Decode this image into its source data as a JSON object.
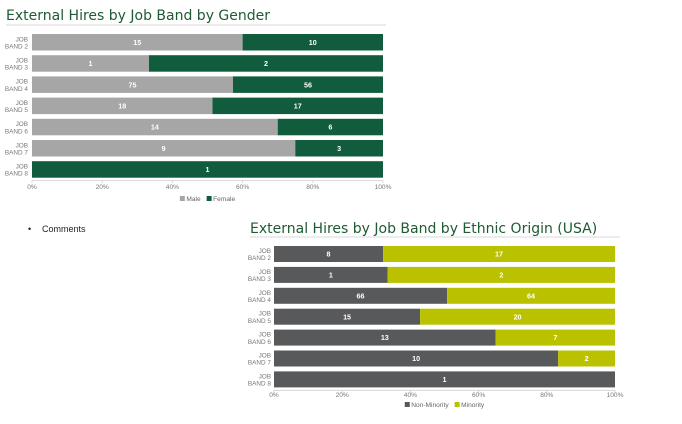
{
  "comments": {
    "bullet": "•",
    "label": "Comments"
  },
  "chart_data": [
    {
      "type": "bar",
      "orientation": "horizontal",
      "stacked": "percent",
      "title": "External Hires by Job Band by Gender",
      "categories": [
        [
          "JOB",
          "BAND 2"
        ],
        [
          "JOB",
          "BAND 3"
        ],
        [
          "JOB",
          "BAND 4"
        ],
        [
          "JOB",
          "BAND 5"
        ],
        [
          "JOB",
          "BAND 6"
        ],
        [
          "JOB",
          "BAND 7"
        ],
        [
          "JOB",
          "BAND 8"
        ]
      ],
      "series": [
        {
          "name": "Male",
          "values": [
            15,
            1,
            75,
            18,
            14,
            9,
            0
          ],
          "color": "#a6a6a6"
        },
        {
          "name": "Female",
          "values": [
            10,
            2,
            56,
            17,
            6,
            3,
            1
          ],
          "color": "#115c3c"
        }
      ],
      "xticks": [
        "0%",
        "20%",
        "40%",
        "60%",
        "80%",
        "100%"
      ],
      "xlim": [
        0,
        100
      ],
      "legend": "bottom"
    },
    {
      "type": "bar",
      "orientation": "horizontal",
      "stacked": "percent",
      "title": "External Hires by Job Band by Ethnic Origin (USA)",
      "categories": [
        [
          "JOB",
          "BAND 2"
        ],
        [
          "JOB",
          "BAND 3"
        ],
        [
          "JOB",
          "BAND 4"
        ],
        [
          "JOB",
          "BAND 5"
        ],
        [
          "JOB",
          "BAND 6"
        ],
        [
          "JOB",
          "BAND 7"
        ],
        [
          "JOB",
          "BAND 8"
        ]
      ],
      "series": [
        {
          "name": "Non-Minority",
          "values": [
            8,
            1,
            66,
            15,
            13,
            10,
            1
          ],
          "color": "#58595b"
        },
        {
          "name": "Minority",
          "values": [
            17,
            2,
            64,
            20,
            7,
            2,
            0
          ],
          "color": "#bac200"
        }
      ],
      "xticks": [
        "0%",
        "20%",
        "40%",
        "60%",
        "80%",
        "100%"
      ],
      "xlim": [
        0,
        100
      ],
      "legend": "bottom"
    }
  ]
}
